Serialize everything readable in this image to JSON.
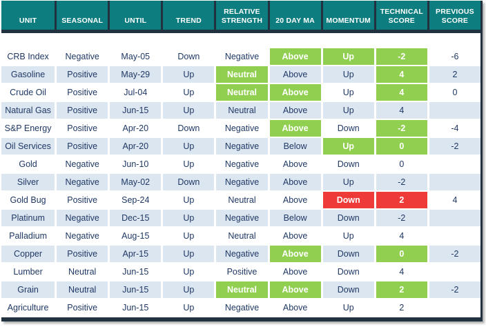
{
  "colors": {
    "header_bg": "#0d7d80",
    "line": "#223140",
    "text_navy": "#1f3864",
    "alt_row": "#dce6f1",
    "highlight_green": "#90cf50",
    "highlight_red": "#ee3b37",
    "header_text": "#ffffff"
  },
  "table": {
    "columns": [
      {
        "id": "unit",
        "label": "UNIT"
      },
      {
        "id": "seasonal",
        "label": "SEASONAL"
      },
      {
        "id": "until",
        "label": "UNTIL"
      },
      {
        "id": "trend",
        "label": "TREND"
      },
      {
        "id": "relative_strength",
        "label": "RELATIVE\nSTRENGTH"
      },
      {
        "id": "20_day_ma",
        "label": "20 DAY MA"
      },
      {
        "id": "momentum",
        "label": "MOMENTUM"
      },
      {
        "id": "technical_score",
        "label": "TECHNICAL\nSCORE"
      },
      {
        "id": "previous_score",
        "label": "PREVIOUS\nSCORE"
      }
    ],
    "rows": [
      {
        "cells": [
          {
            "v": "CRB Index"
          },
          {
            "v": "Negative"
          },
          {
            "v": "May-05"
          },
          {
            "v": "Down"
          },
          {
            "v": "Negative"
          },
          {
            "v": "Above",
            "h": "green"
          },
          {
            "v": "Up",
            "h": "green"
          },
          {
            "v": "-2",
            "h": "green"
          },
          {
            "v": "-6"
          }
        ]
      },
      {
        "cells": [
          {
            "v": "Gasoline"
          },
          {
            "v": "Positive"
          },
          {
            "v": "May-29"
          },
          {
            "v": "Up"
          },
          {
            "v": "Neutral",
            "h": "green"
          },
          {
            "v": "Above"
          },
          {
            "v": "Up"
          },
          {
            "v": "4",
            "h": "green"
          },
          {
            "v": "2"
          }
        ]
      },
      {
        "cells": [
          {
            "v": "Crude Oil"
          },
          {
            "v": "Positive"
          },
          {
            "v": "Jul-04"
          },
          {
            "v": "Up"
          },
          {
            "v": "Neutral",
            "h": "green"
          },
          {
            "v": "Above",
            "h": "green"
          },
          {
            "v": "Up"
          },
          {
            "v": "4",
            "h": "green"
          },
          {
            "v": "0"
          }
        ]
      },
      {
        "cells": [
          {
            "v": "Natural Gas"
          },
          {
            "v": "Positive"
          },
          {
            "v": "Jun-15"
          },
          {
            "v": "Up"
          },
          {
            "v": "Neutral"
          },
          {
            "v": "Above"
          },
          {
            "v": "Up"
          },
          {
            "v": "4"
          },
          {
            "v": ""
          }
        ]
      },
      {
        "cells": [
          {
            "v": "S&P Energy"
          },
          {
            "v": "Positive"
          },
          {
            "v": "Apr-20"
          },
          {
            "v": "Down"
          },
          {
            "v": "Negative"
          },
          {
            "v": "Above",
            "h": "green"
          },
          {
            "v": "Down"
          },
          {
            "v": "-2",
            "h": "green"
          },
          {
            "v": "-4"
          }
        ]
      },
      {
        "cells": [
          {
            "v": "Oil Services"
          },
          {
            "v": "Positive"
          },
          {
            "v": "Apr-20"
          },
          {
            "v": "Up"
          },
          {
            "v": "Negative"
          },
          {
            "v": "Below"
          },
          {
            "v": "Up",
            "h": "green"
          },
          {
            "v": "0",
            "h": "green"
          },
          {
            "v": "-2"
          }
        ]
      },
      {
        "cells": [
          {
            "v": "Gold"
          },
          {
            "v": "Negative"
          },
          {
            "v": "Jun-10"
          },
          {
            "v": "Up"
          },
          {
            "v": "Negative"
          },
          {
            "v": "Above"
          },
          {
            "v": "Down"
          },
          {
            "v": "0"
          },
          {
            "v": ""
          }
        ]
      },
      {
        "cells": [
          {
            "v": "Silver"
          },
          {
            "v": "Negative"
          },
          {
            "v": "May-02"
          },
          {
            "v": "Down"
          },
          {
            "v": "Negative"
          },
          {
            "v": "Above"
          },
          {
            "v": "Up"
          },
          {
            "v": "-2"
          },
          {
            "v": ""
          }
        ]
      },
      {
        "cells": [
          {
            "v": "Gold Bug"
          },
          {
            "v": "Positive"
          },
          {
            "v": "Sep-24"
          },
          {
            "v": "Up"
          },
          {
            "v": "Neutral"
          },
          {
            "v": "Above"
          },
          {
            "v": "Down",
            "h": "red"
          },
          {
            "v": "2",
            "h": "red"
          },
          {
            "v": "4"
          }
        ]
      },
      {
        "cells": [
          {
            "v": "Platinum"
          },
          {
            "v": "Negative"
          },
          {
            "v": "Dec-15"
          },
          {
            "v": "Up"
          },
          {
            "v": "Negative"
          },
          {
            "v": "Below"
          },
          {
            "v": "Down"
          },
          {
            "v": "-2"
          },
          {
            "v": ""
          }
        ]
      },
      {
        "cells": [
          {
            "v": "Palladium"
          },
          {
            "v": "Negative"
          },
          {
            "v": "Aug-15"
          },
          {
            "v": "Up"
          },
          {
            "v": "Neutral"
          },
          {
            "v": "Above"
          },
          {
            "v": "Up"
          },
          {
            "v": "4"
          },
          {
            "v": ""
          }
        ]
      },
      {
        "cells": [
          {
            "v": "Copper"
          },
          {
            "v": "Positive"
          },
          {
            "v": "Apr-15"
          },
          {
            "v": "Up"
          },
          {
            "v": "Negative"
          },
          {
            "v": "Above",
            "h": "green"
          },
          {
            "v": "Down"
          },
          {
            "v": "0",
            "h": "green"
          },
          {
            "v": "-2"
          }
        ]
      },
      {
        "cells": [
          {
            "v": "Lumber"
          },
          {
            "v": "Neutral"
          },
          {
            "v": "Jun-15"
          },
          {
            "v": "Up"
          },
          {
            "v": "Positive"
          },
          {
            "v": "Above"
          },
          {
            "v": "Down"
          },
          {
            "v": "4"
          },
          {
            "v": ""
          }
        ]
      },
      {
        "cells": [
          {
            "v": "Grain"
          },
          {
            "v": "Neutral"
          },
          {
            "v": "Jun-15"
          },
          {
            "v": "Up"
          },
          {
            "v": "Neutral",
            "h": "green"
          },
          {
            "v": "Above",
            "h": "green"
          },
          {
            "v": "Down"
          },
          {
            "v": "2",
            "h": "green"
          },
          {
            "v": "-2"
          }
        ]
      },
      {
        "cells": [
          {
            "v": "Agriculture"
          },
          {
            "v": "Positive"
          },
          {
            "v": "Jun-15"
          },
          {
            "v": "Up"
          },
          {
            "v": "Negative"
          },
          {
            "v": "Above"
          },
          {
            "v": "Up"
          },
          {
            "v": "2"
          },
          {
            "v": ""
          }
        ]
      }
    ]
  }
}
